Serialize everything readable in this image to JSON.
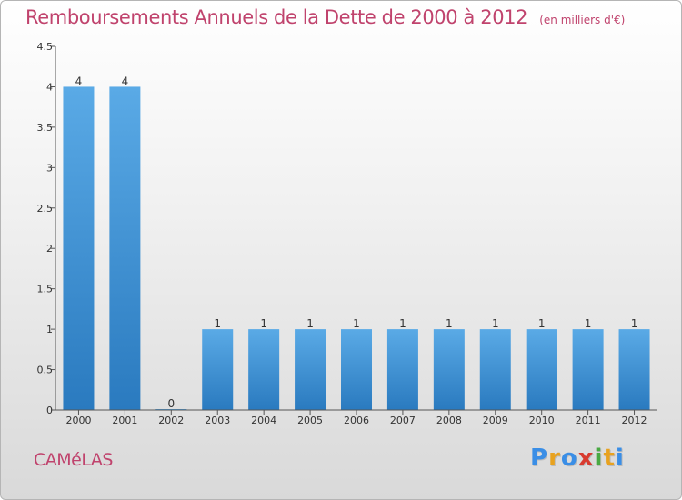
{
  "header": {
    "title": "Remboursements Annuels de la Dette de 2000 à 2012",
    "unit": "(en milliers d'€)"
  },
  "footer": {
    "commune": "CAMéLAS",
    "logo_letters": [
      "P",
      "r",
      "o",
      "x",
      "i",
      "t",
      "i"
    ],
    "logo_colors": [
      "#3a8ee6",
      "#e8a21f",
      "#3a8ee6",
      "#d83b2f",
      "#49a942",
      "#e8a21f",
      "#3a8ee6"
    ]
  },
  "colors": {
    "bar_top": "#5aaae6",
    "bar_bottom": "#2a7abf",
    "axis": "#555555"
  },
  "chart_data": {
    "type": "bar",
    "title": "Remboursements Annuels de la Dette de 2000 à 2012",
    "xlabel": "",
    "ylabel": "en milliers d'€",
    "categories": [
      "2000",
      "2001",
      "2002",
      "2003",
      "2004",
      "2005",
      "2006",
      "2007",
      "2008",
      "2009",
      "2010",
      "2011",
      "2012"
    ],
    "values": [
      4,
      4,
      0,
      1,
      1,
      1,
      1,
      1,
      1,
      1,
      1,
      1,
      1
    ],
    "value_labels": [
      "4",
      "4",
      "0",
      "1",
      "1",
      "1",
      "1",
      "1",
      "1",
      "1",
      "1",
      "1",
      "1"
    ],
    "ylim": [
      0,
      4.5
    ],
    "yticks": [
      0,
      0.5,
      1,
      1.5,
      2,
      2.5,
      3,
      3.5,
      4,
      4.5
    ],
    "ytick_labels": [
      "0",
      "0.5",
      "1",
      "1.5",
      "2",
      "2.5",
      "3",
      "3.5",
      "4",
      "4.5"
    ],
    "grid": false,
    "legend": "none"
  }
}
